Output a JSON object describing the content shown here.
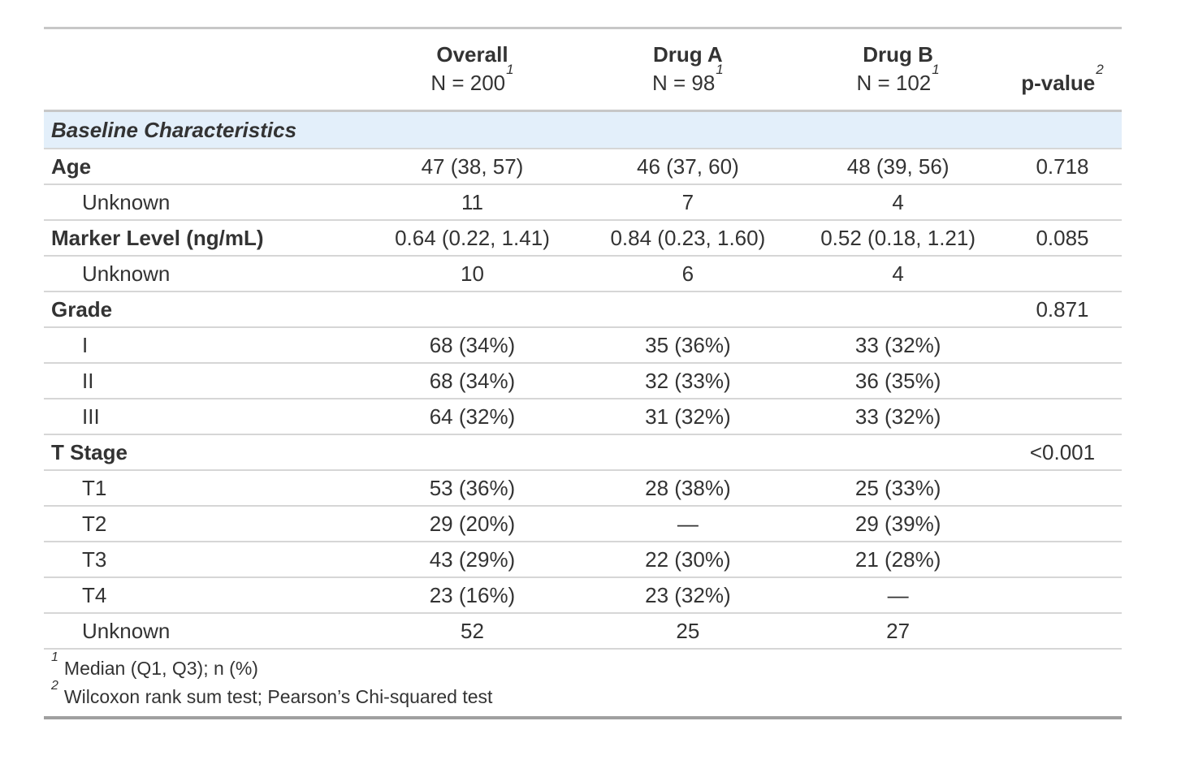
{
  "colors": {
    "text": "#333333",
    "page_bg": "#ffffff",
    "group_row_bg": "#e3effa",
    "border_light": "#d6d6d6",
    "border_mid": "#c7c7c7",
    "border_dark": "#a0a0a0"
  },
  "chart_data": {
    "type": "table",
    "group_label": "Baseline Characteristics",
    "columns": [
      {
        "id": "label",
        "title": "",
        "subtitle": "",
        "footnote_mark": ""
      },
      {
        "id": "overall",
        "title": "Overall",
        "subtitle": "N = 200",
        "footnote_mark": "1"
      },
      {
        "id": "drug_a",
        "title": "Drug A",
        "subtitle": "N = 98",
        "footnote_mark": "1"
      },
      {
        "id": "drug_b",
        "title": "Drug B",
        "subtitle": "N = 102",
        "footnote_mark": "1"
      },
      {
        "id": "p_value",
        "title": "p-value",
        "subtitle": "",
        "footnote_mark": "2"
      }
    ],
    "rows": [
      {
        "label": "Age",
        "bold": true,
        "indent": false,
        "overall": "47 (38, 57)",
        "drug_a": "46 (37, 60)",
        "drug_b": "48 (39, 56)",
        "p_value": "0.718"
      },
      {
        "label": "Unknown",
        "bold": false,
        "indent": true,
        "overall": "11",
        "drug_a": "7",
        "drug_b": "4",
        "p_value": ""
      },
      {
        "label": "Marker Level (ng/mL)",
        "bold": true,
        "indent": false,
        "overall": "0.64 (0.22, 1.41)",
        "drug_a": "0.84 (0.23, 1.60)",
        "drug_b": "0.52 (0.18, 1.21)",
        "p_value": "0.085"
      },
      {
        "label": "Unknown",
        "bold": false,
        "indent": true,
        "overall": "10",
        "drug_a": "6",
        "drug_b": "4",
        "p_value": ""
      },
      {
        "label": "Grade",
        "bold": true,
        "indent": false,
        "overall": "",
        "drug_a": "",
        "drug_b": "",
        "p_value": "0.871"
      },
      {
        "label": "I",
        "bold": false,
        "indent": true,
        "overall": "68 (34%)",
        "drug_a": "35 (36%)",
        "drug_b": "33 (32%)",
        "p_value": ""
      },
      {
        "label": "II",
        "bold": false,
        "indent": true,
        "overall": "68 (34%)",
        "drug_a": "32 (33%)",
        "drug_b": "36 (35%)",
        "p_value": ""
      },
      {
        "label": "III",
        "bold": false,
        "indent": true,
        "overall": "64 (32%)",
        "drug_a": "31 (32%)",
        "drug_b": "33 (32%)",
        "p_value": ""
      },
      {
        "label": "T Stage",
        "bold": true,
        "indent": false,
        "overall": "",
        "drug_a": "",
        "drug_b": "",
        "p_value": "<0.001"
      },
      {
        "label": "T1",
        "bold": false,
        "indent": true,
        "overall": "53 (36%)",
        "drug_a": "28 (38%)",
        "drug_b": "25 (33%)",
        "p_value": ""
      },
      {
        "label": "T2",
        "bold": false,
        "indent": true,
        "overall": "29 (20%)",
        "drug_a": "—",
        "drug_b": "29 (39%)",
        "p_value": ""
      },
      {
        "label": "T3",
        "bold": false,
        "indent": true,
        "overall": "43 (29%)",
        "drug_a": "22 (30%)",
        "drug_b": "21 (28%)",
        "p_value": ""
      },
      {
        "label": "T4",
        "bold": false,
        "indent": true,
        "overall": "23 (16%)",
        "drug_a": "23 (32%)",
        "drug_b": "—",
        "p_value": ""
      },
      {
        "label": "Unknown",
        "bold": false,
        "indent": true,
        "overall": "52",
        "drug_a": "25",
        "drug_b": "27",
        "p_value": ""
      }
    ],
    "footnotes": [
      {
        "mark": "1",
        "text": "Median (Q1, Q3); n (%)"
      },
      {
        "mark": "2",
        "text": "Wilcoxon rank sum test; Pearson’s Chi-squared test"
      }
    ]
  }
}
